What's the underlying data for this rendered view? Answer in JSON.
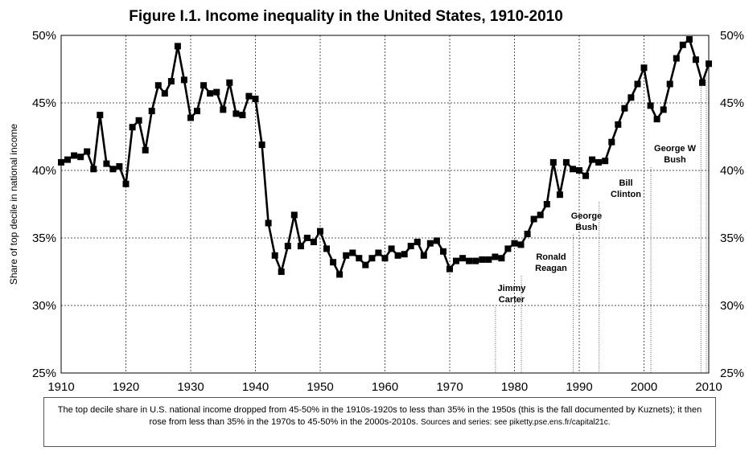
{
  "chart_data": {
    "type": "line",
    "title": "Figure I.1. Income inequality in the United States, 1910-2010",
    "ylabel": "Share of top decile in national income",
    "xlim": [
      1910,
      2010
    ],
    "ylim": [
      25,
      50
    ],
    "x_ticks": [
      1910,
      1920,
      1930,
      1940,
      1950,
      1960,
      1970,
      1980,
      1990,
      2000,
      2010
    ],
    "x_tick_labels": [
      "1910",
      "1920",
      "1930",
      "1940",
      "1950",
      "1960",
      "1970",
      "1980",
      "1990",
      "2000",
      "2010"
    ],
    "y_ticks": [
      25,
      30,
      35,
      40,
      45,
      50
    ],
    "y_tick_labels": [
      "25%",
      "30%",
      "35%",
      "40%",
      "45%",
      "50%"
    ],
    "grid": true,
    "series": [
      {
        "marker": "square",
        "color": "#000000",
        "x": [
          1910,
          1911,
          1912,
          1913,
          1914,
          1915,
          1916,
          1917,
          1918,
          1919,
          1920,
          1921,
          1922,
          1923,
          1924,
          1925,
          1926,
          1927,
          1928,
          1929,
          1930,
          1931,
          1932,
          1933,
          1934,
          1935,
          1936,
          1937,
          1938,
          1939,
          1940,
          1941,
          1942,
          1943,
          1944,
          1945,
          1946,
          1947,
          1948,
          1949,
          1950,
          1951,
          1952,
          1953,
          1954,
          1955,
          1956,
          1957,
          1958,
          1959,
          1960,
          1961,
          1962,
          1963,
          1964,
          1965,
          1966,
          1967,
          1968,
          1969,
          1970,
          1971,
          1972,
          1973,
          1974,
          1975,
          1976,
          1977,
          1978,
          1979,
          1980,
          1981,
          1982,
          1983,
          1984,
          1985,
          1986,
          1987,
          1988,
          1989,
          1990,
          1991,
          1992,
          1993,
          1994,
          1995,
          1996,
          1997,
          1998,
          1999,
          2000,
          2001,
          2002,
          2003,
          2004,
          2005,
          2006,
          2007,
          2008,
          2009,
          2010
        ],
        "y": [
          40.6,
          40.8,
          41.1,
          41.0,
          41.4,
          40.1,
          44.1,
          40.5,
          40.1,
          40.3,
          39.0,
          43.2,
          43.7,
          41.5,
          44.4,
          46.3,
          45.7,
          46.6,
          49.2,
          46.7,
          43.9,
          44.4,
          46.3,
          45.7,
          45.8,
          44.5,
          46.5,
          44.2,
          44.1,
          45.5,
          45.3,
          41.9,
          36.1,
          33.7,
          32.5,
          34.4,
          36.7,
          34.4,
          35.0,
          34.7,
          35.5,
          34.2,
          33.2,
          32.3,
          33.7,
          33.9,
          33.5,
          33.0,
          33.5,
          33.9,
          33.5,
          34.2,
          33.7,
          33.8,
          34.4,
          34.7,
          33.7,
          34.6,
          34.8,
          34.0,
          32.7,
          33.3,
          33.5,
          33.3,
          33.3,
          33.4,
          33.4,
          33.6,
          33.5,
          34.2,
          34.6,
          34.5,
          35.3,
          36.4,
          36.7,
          37.5,
          40.6,
          38.2,
          40.6,
          40.1,
          40.0,
          39.6,
          40.8,
          40.6,
          40.7,
          42.1,
          43.4,
          44.6,
          45.4,
          46.4,
          47.6,
          44.8,
          43.8,
          44.5,
          46.4,
          48.3,
          49.3,
          49.7,
          48.2,
          46.5,
          47.9
        ]
      }
    ],
    "annotations": [
      {
        "label": [
          "Jimmy",
          "Carter"
        ],
        "year": 1977
      },
      {
        "label": [
          "Ronald",
          "Reagan"
        ],
        "year": 1981
      },
      {
        "label": [
          "George",
          "Bush"
        ],
        "year": 1989
      },
      {
        "label": [
          "Bill",
          "Clinton"
        ],
        "year": 1993
      },
      {
        "label": [
          "George W",
          "Bush"
        ],
        "year": 2001
      }
    ],
    "caption_main": "The top decile share in U.S. national income dropped from 45-50% in the 1910s-1920s to less than 35% in the 1950s (this is the fall documented by Kuznets); it then rose from less than 35% in the 1970s to 45-50% in the 2000s-2010s.",
    "caption_sources": "Sources and series: see piketty.pse.ens.fr/capital21c."
  }
}
